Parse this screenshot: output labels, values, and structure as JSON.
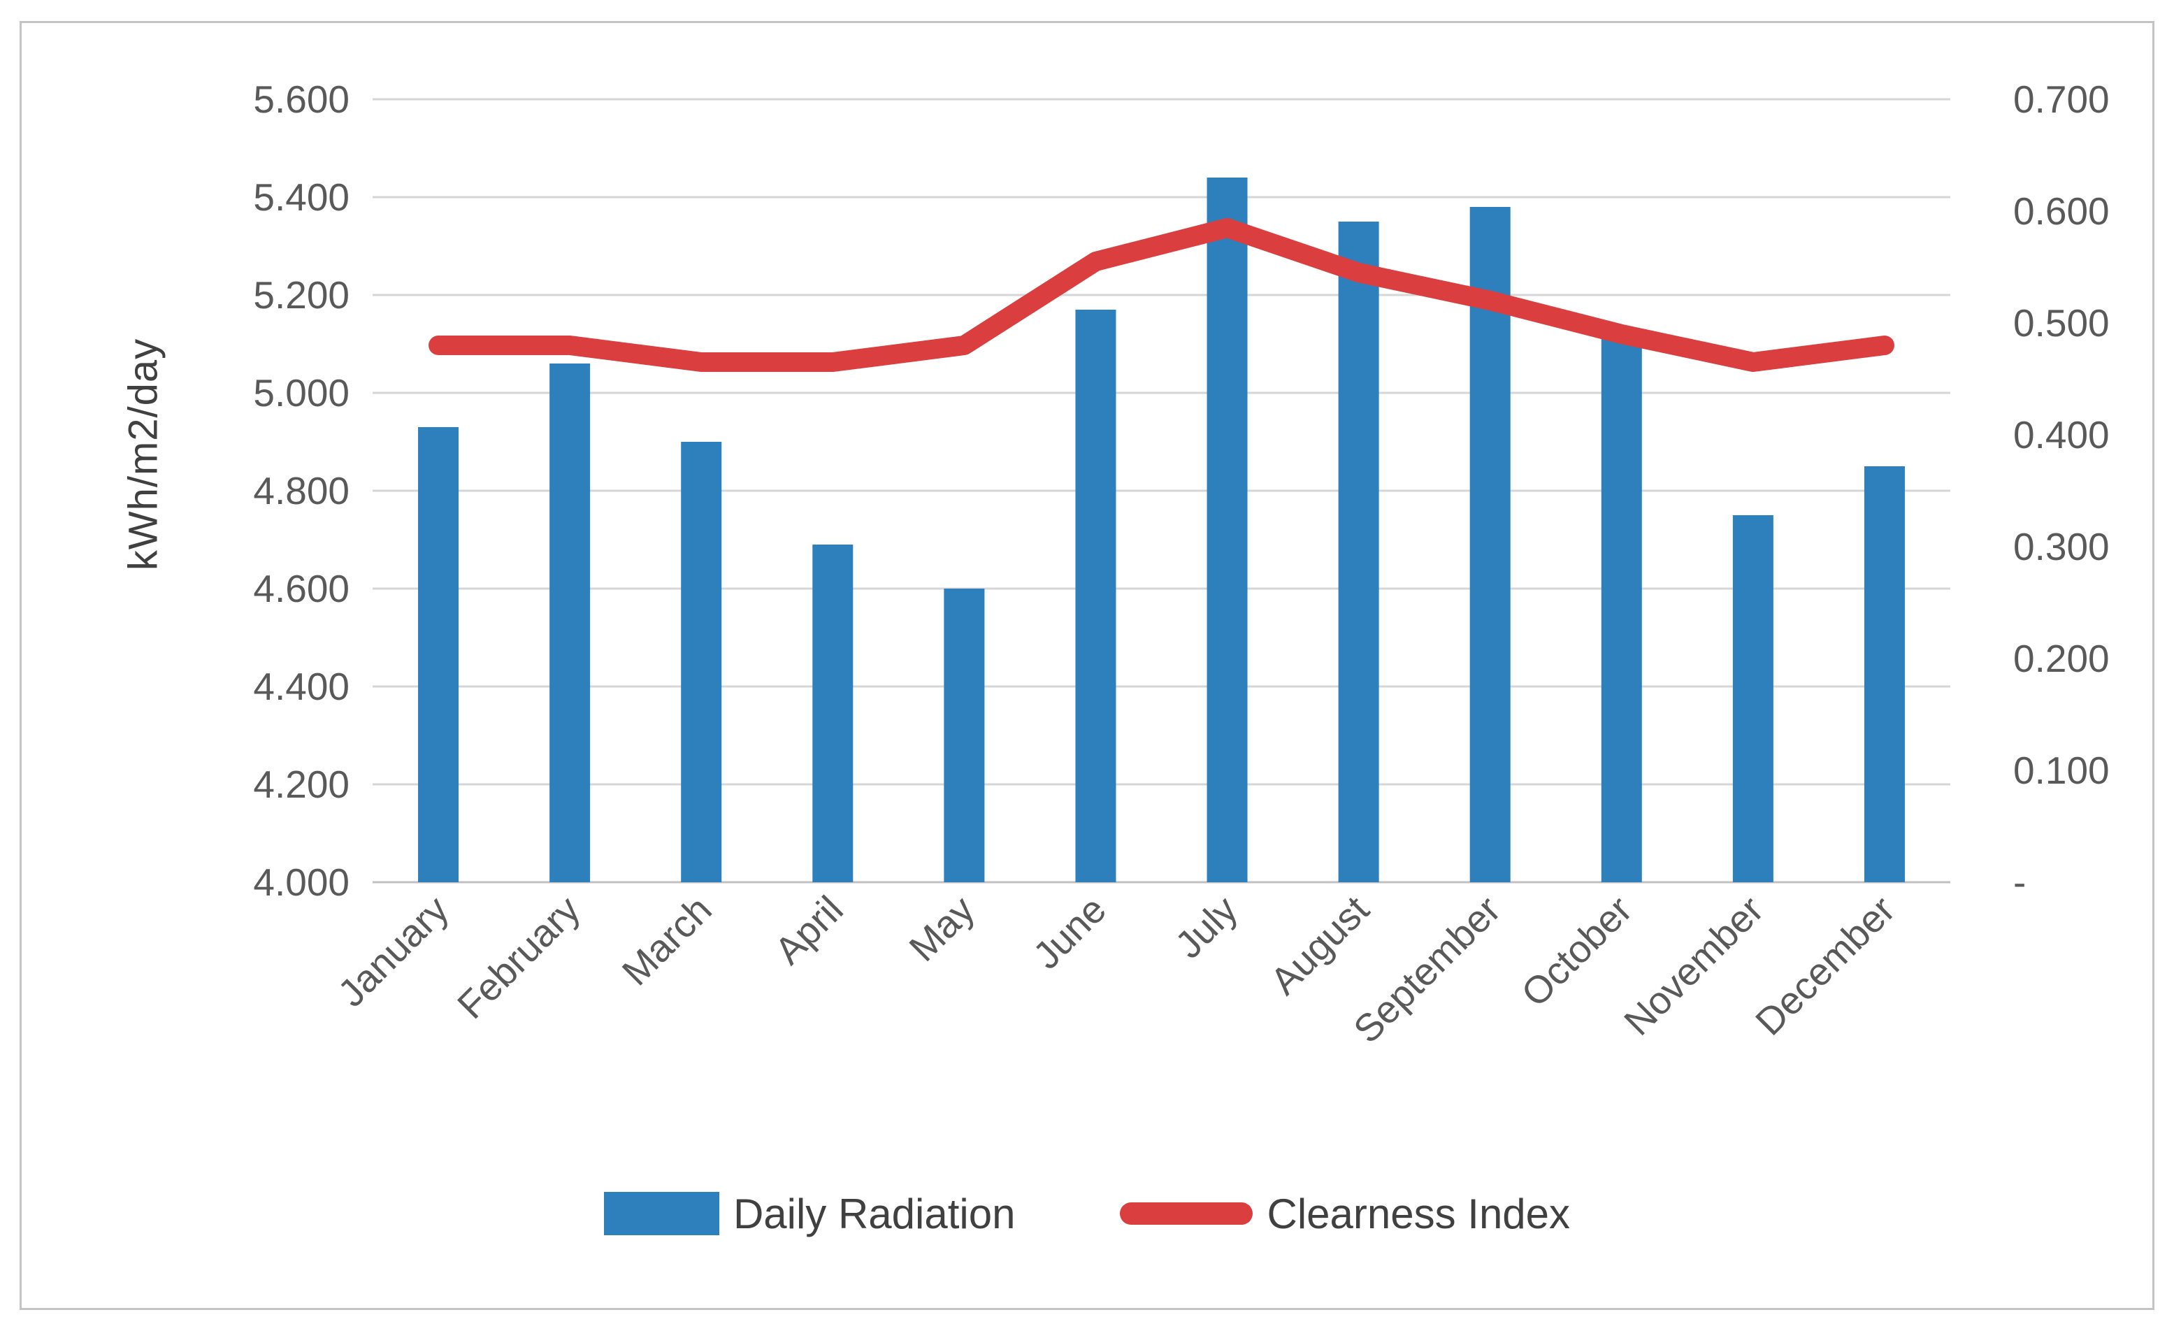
{
  "figure": {
    "background_color": "#ffffff",
    "border_color": "#c4c4c4"
  },
  "chart_data": {
    "type": "bar+line combo",
    "categories": [
      "January",
      "February",
      "March",
      "April",
      "May",
      "June",
      "July",
      "August",
      "September",
      "October",
      "November",
      "December"
    ],
    "series": [
      {
        "name": "Daily Radiation",
        "type": "bar",
        "axis": "left",
        "color": "#2e80bd",
        "values": [
          4.93,
          5.06,
          4.9,
          4.69,
          4.6,
          5.17,
          5.44,
          5.35,
          5.38,
          5.11,
          4.75,
          4.85
        ]
      },
      {
        "name": "Clearness Index",
        "type": "line",
        "axis": "right",
        "color": "#db3e3e",
        "values": [
          0.48,
          0.48,
          0.465,
          0.465,
          0.48,
          0.555,
          0.585,
          0.545,
          0.52,
          0.49,
          0.465,
          0.48
        ]
      }
    ],
    "left_axis": {
      "label": "kWh/m2/day",
      "min": 4.0,
      "max": 5.6,
      "step": 0.2,
      "tick_labels": [
        "5.600",
        "5.400",
        "5.200",
        "5.000",
        "4.800",
        "4.600",
        "4.400",
        "4.200",
        "4.000"
      ]
    },
    "right_axis": {
      "label": "",
      "min": 0.0,
      "max": 0.7,
      "step": 0.1,
      "tick_labels": [
        "0.700",
        "0.600",
        "0.500",
        "0.400",
        "0.300",
        "0.200",
        "0.100",
        "-"
      ]
    },
    "grid": true,
    "gridline_color": "#d6d6d6",
    "tick_text_color": "#595959",
    "legend_position": "bottom"
  }
}
